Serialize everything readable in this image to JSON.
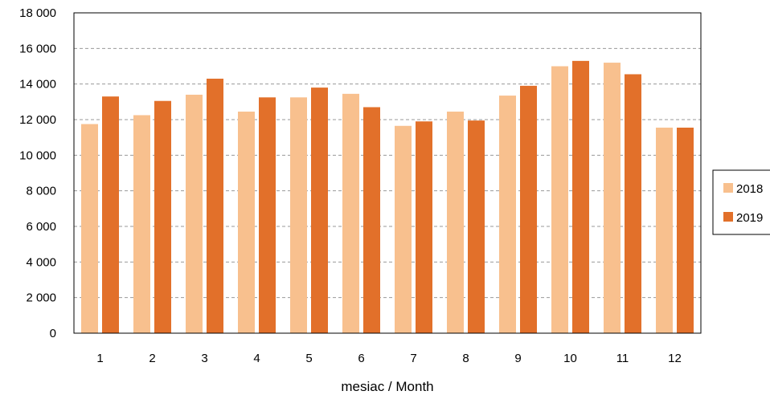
{
  "chart_data": {
    "type": "bar",
    "title": "",
    "xlabel": "mesiac / Month",
    "ylabel": "",
    "ylim": [
      0,
      18000
    ],
    "yticks": [
      0,
      2000,
      4000,
      6000,
      8000,
      10000,
      12000,
      14000,
      16000,
      18000
    ],
    "ytick_labels": [
      "0",
      "2 000",
      "4 000",
      "6 000",
      "8 000",
      "10 000",
      "12 000",
      "14 000",
      "16 000",
      "18 000"
    ],
    "categories": [
      "1",
      "2",
      "3",
      "4",
      "5",
      "6",
      "7",
      "8",
      "9",
      "10",
      "11",
      "12"
    ],
    "series": [
      {
        "name": "2018",
        "color": "#F8C08E",
        "values": [
          11750,
          12250,
          13400,
          12450,
          13250,
          13450,
          11650,
          12450,
          13350,
          15000,
          15200,
          11550
        ]
      },
      {
        "name": "2019",
        "color": "#E2702A",
        "values": [
          13300,
          13050,
          14300,
          13250,
          13800,
          12700,
          11900,
          11950,
          13900,
          15300,
          14550,
          11550
        ]
      }
    ],
    "grid": "horizontal-dashed",
    "legend_position": "right"
  }
}
